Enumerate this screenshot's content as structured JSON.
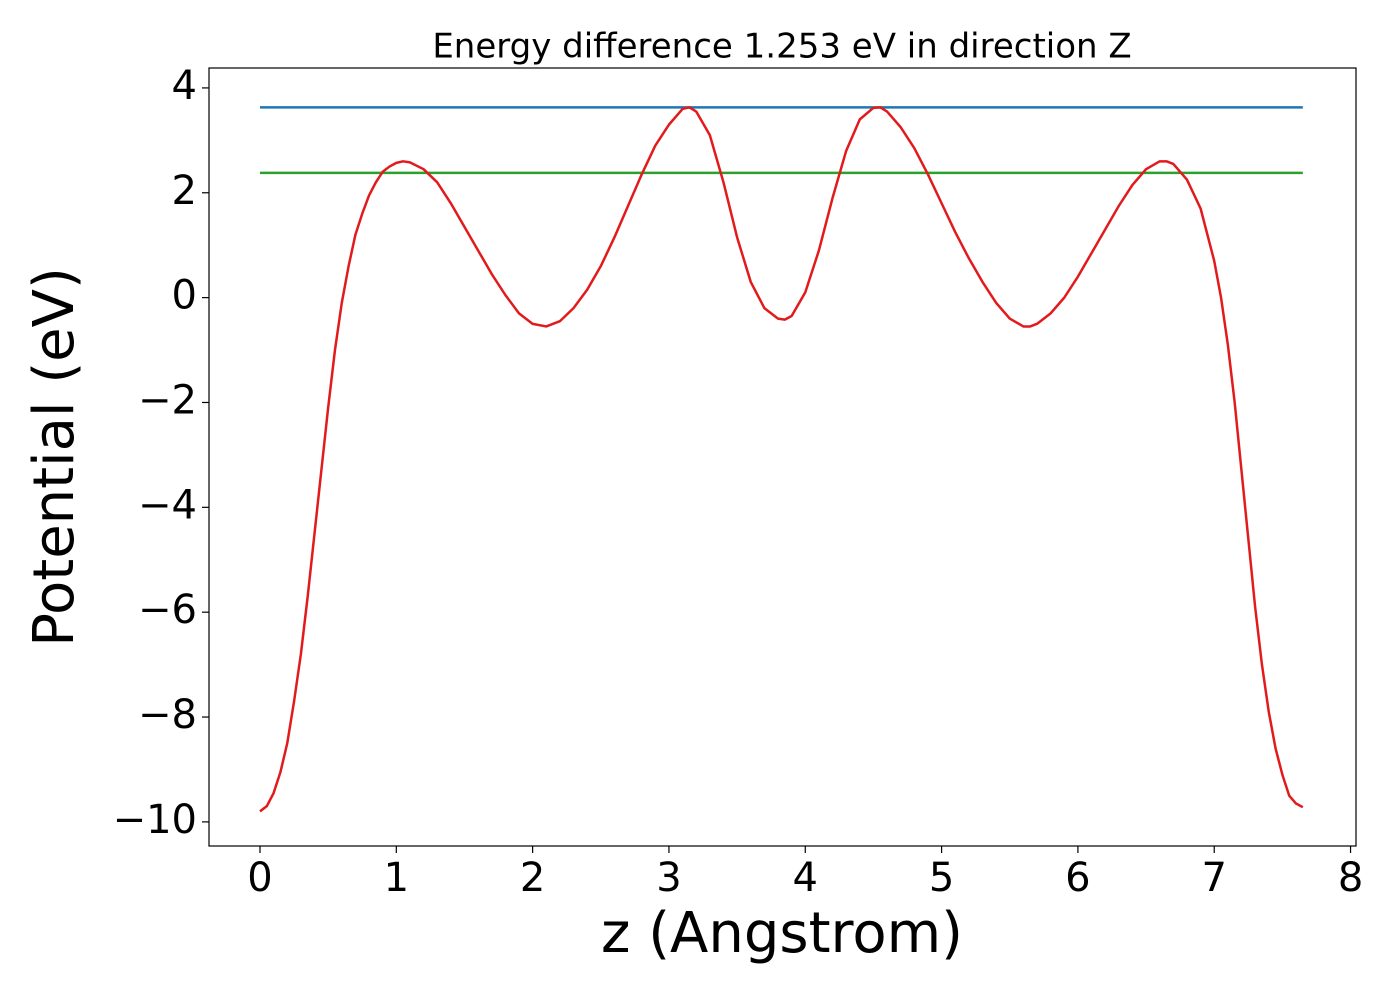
{
  "chart_data": {
    "type": "line",
    "title": "Energy difference 1.253 eV in direction Z",
    "xlabel": "z (Angstrom)",
    "ylabel": "Potential (eV)",
    "xlim": [
      -0.374,
      8.04
    ],
    "ylim": [
      -10.46,
      4.38
    ],
    "xticks": [
      0,
      1,
      2,
      3,
      4,
      5,
      6,
      7,
      8
    ],
    "yticks": [
      {
        "value": -10,
        "label": "−10"
      },
      {
        "value": -8,
        "label": "−8"
      },
      {
        "value": -6,
        "label": "−6"
      },
      {
        "value": -4,
        "label": "−4"
      },
      {
        "value": -2,
        "label": "−2"
      },
      0,
      2,
      4
    ],
    "series": [
      {
        "color": "#1f77b4",
        "x": [
          0,
          7.65
        ],
        "values": [
          3.63,
          3.63
        ]
      },
      {
        "color": "#2ca02c",
        "x": [
          0,
          7.65
        ],
        "values": [
          2.38,
          2.38
        ]
      },
      {
        "color": "#e31a1c",
        "x": [
          0,
          0.05,
          0.1,
          0.15,
          0.2,
          0.25,
          0.3,
          0.35,
          0.4,
          0.45,
          0.5,
          0.55,
          0.6,
          0.65,
          0.7,
          0.75,
          0.8,
          0.85,
          0.9,
          0.95,
          1.0,
          1.05,
          1.1,
          1.2,
          1.3,
          1.4,
          1.5,
          1.6,
          1.7,
          1.8,
          1.9,
          2.0,
          2.1,
          2.2,
          2.3,
          2.4,
          2.5,
          2.6,
          2.7,
          2.8,
          2.9,
          3.0,
          3.1,
          3.15,
          3.2,
          3.3,
          3.4,
          3.5,
          3.6,
          3.7,
          3.8,
          3.85,
          3.9,
          4.0,
          4.1,
          4.2,
          4.3,
          4.4,
          4.5,
          4.55,
          4.6,
          4.7,
          4.8,
          4.9,
          5.0,
          5.1,
          5.2,
          5.3,
          5.4,
          5.5,
          5.6,
          5.65,
          5.7,
          5.8,
          5.9,
          6.0,
          6.1,
          6.2,
          6.3,
          6.4,
          6.5,
          6.6,
          6.65,
          6.7,
          6.8,
          6.9,
          7.0,
          7.05,
          7.1,
          7.15,
          7.2,
          7.25,
          7.3,
          7.35,
          7.4,
          7.45,
          7.5,
          7.55,
          7.6,
          7.65
        ],
        "values": [
          -9.8,
          -9.7,
          -9.45,
          -9.05,
          -8.5,
          -7.7,
          -6.8,
          -5.7,
          -4.5,
          -3.3,
          -2.1,
          -1.0,
          -0.1,
          0.6,
          1.2,
          1.6,
          1.95,
          2.2,
          2.4,
          2.5,
          2.57,
          2.6,
          2.58,
          2.45,
          2.2,
          1.8,
          1.35,
          0.9,
          0.45,
          0.05,
          -0.3,
          -0.5,
          -0.55,
          -0.45,
          -0.2,
          0.15,
          0.6,
          1.15,
          1.75,
          2.35,
          2.9,
          3.3,
          3.6,
          3.63,
          3.55,
          3.1,
          2.2,
          1.15,
          0.3,
          -0.2,
          -0.4,
          -0.42,
          -0.35,
          0.1,
          0.9,
          1.9,
          2.8,
          3.4,
          3.62,
          3.63,
          3.55,
          3.25,
          2.85,
          2.35,
          1.8,
          1.25,
          0.75,
          0.3,
          -0.1,
          -0.4,
          -0.55,
          -0.55,
          -0.5,
          -0.3,
          0.0,
          0.4,
          0.85,
          1.3,
          1.75,
          2.15,
          2.45,
          2.6,
          2.6,
          2.55,
          2.25,
          1.7,
          0.7,
          0.0,
          -0.9,
          -2.0,
          -3.3,
          -4.6,
          -5.9,
          -7.0,
          -7.9,
          -8.6,
          -9.1,
          -9.5,
          -9.65,
          -9.72
        ]
      }
    ]
  }
}
